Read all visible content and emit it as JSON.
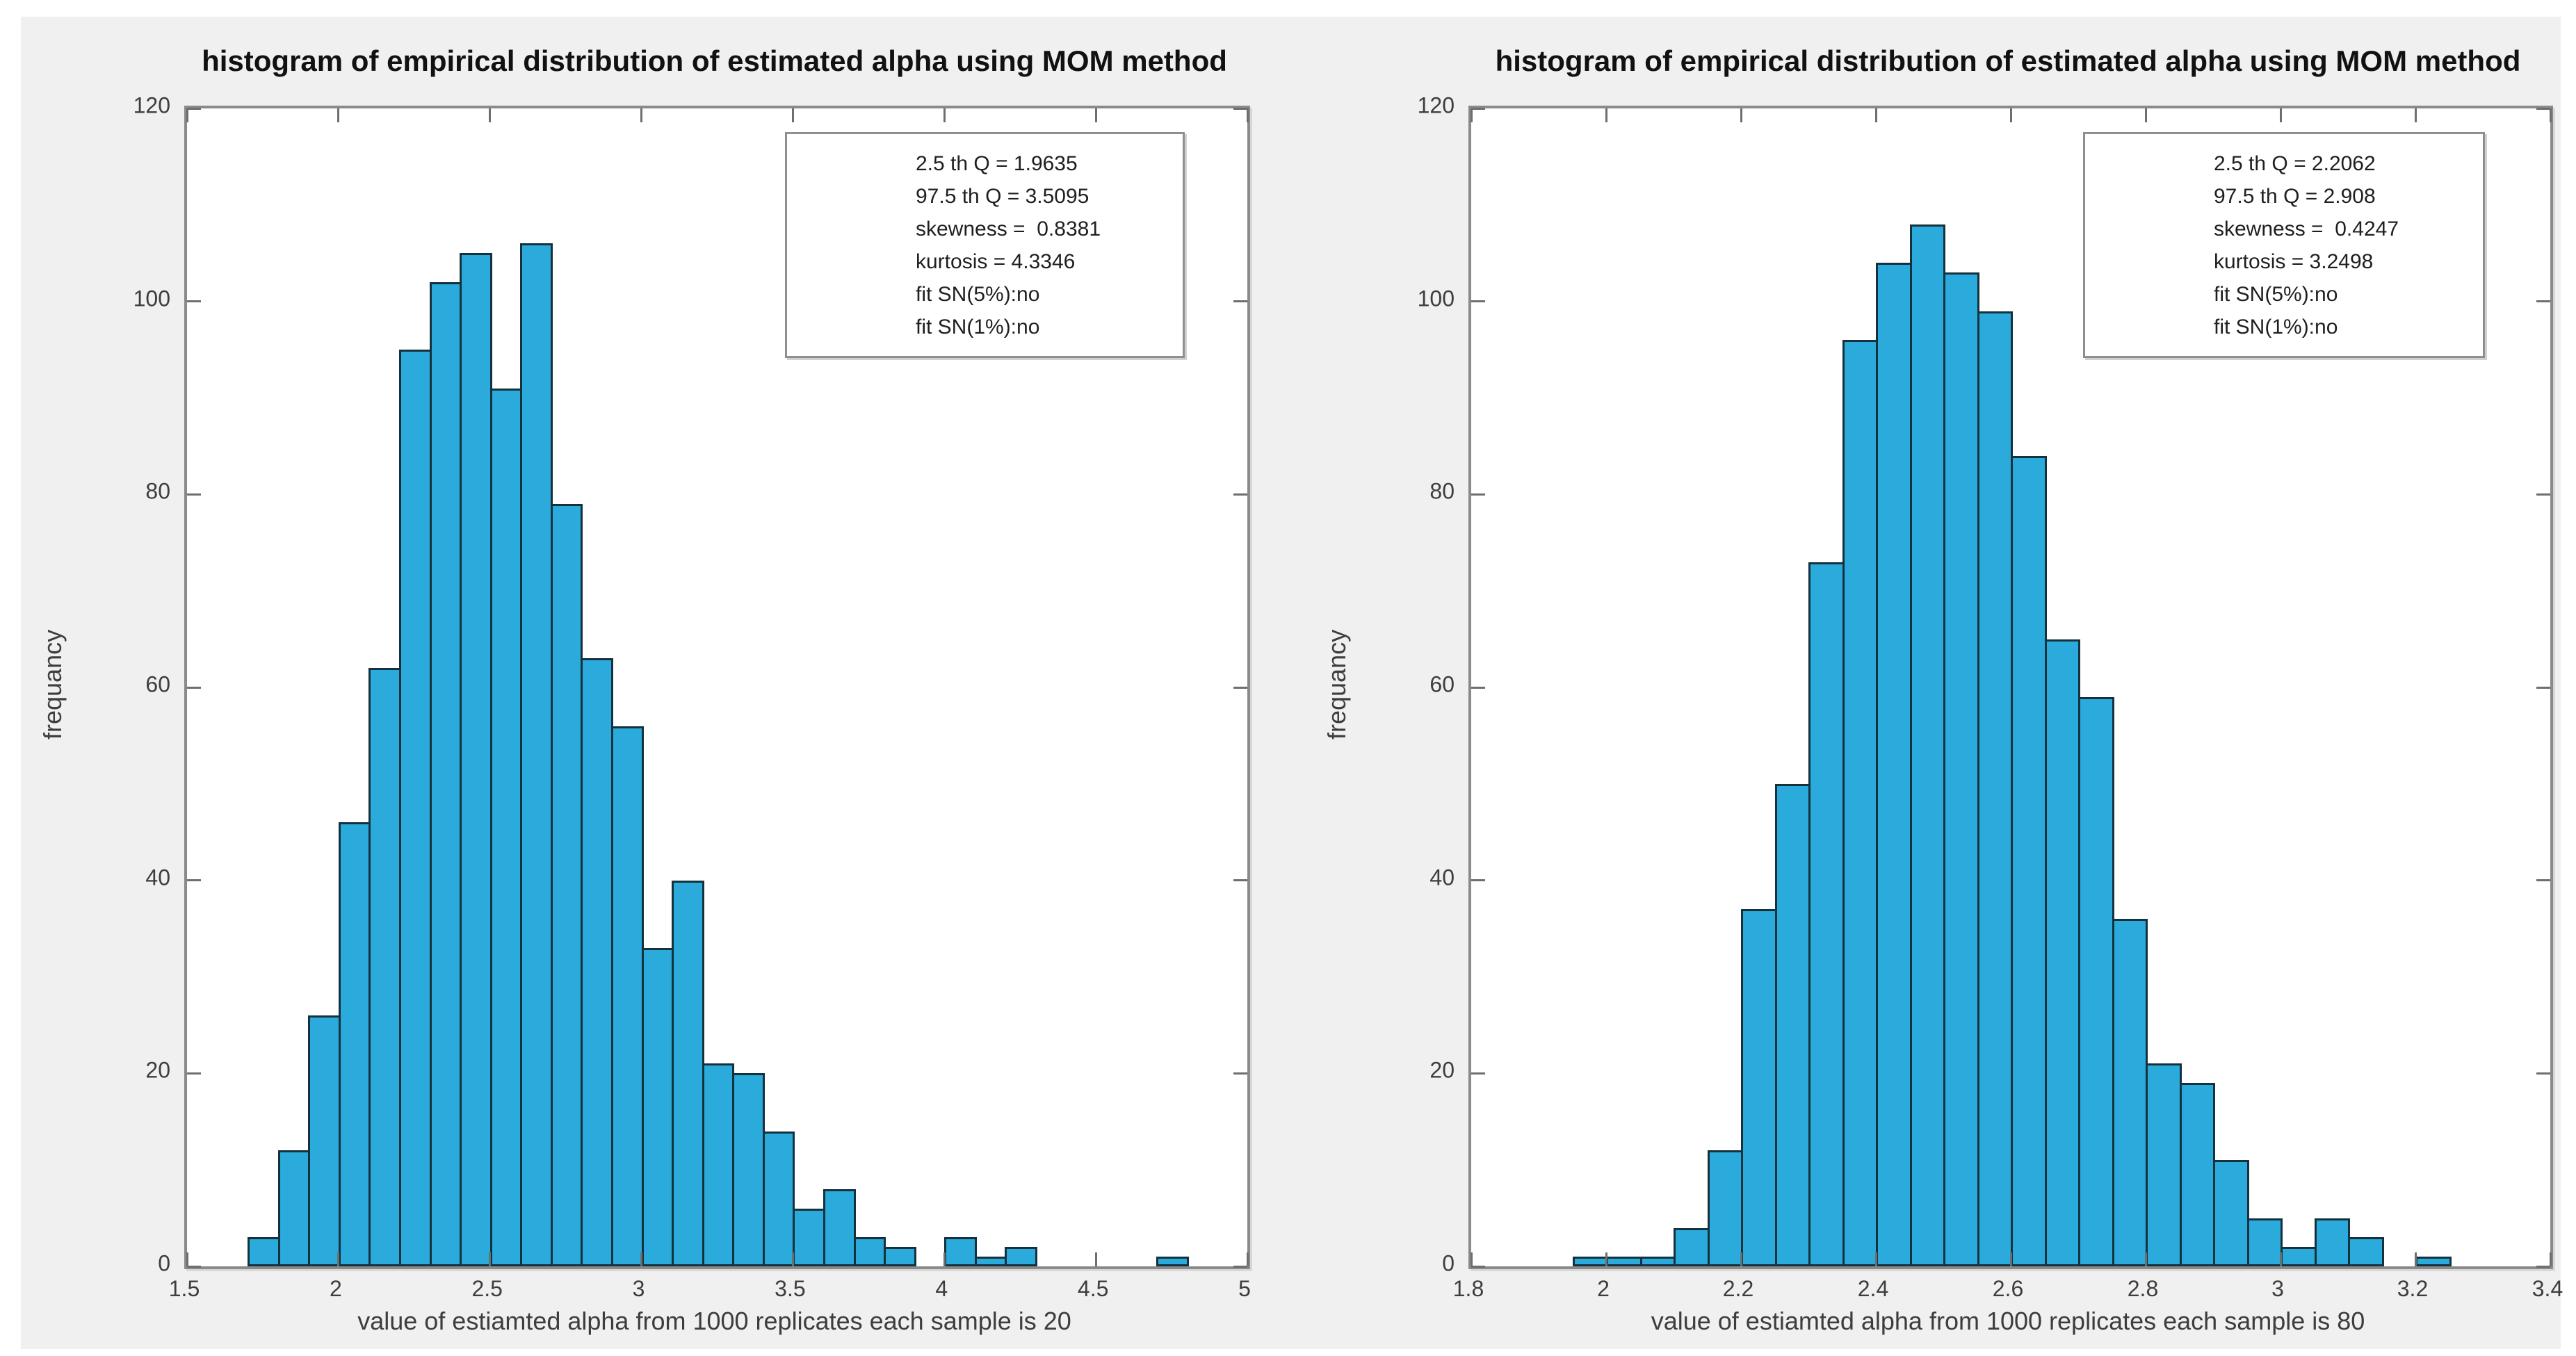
{
  "figure": {
    "page_background": "#ffffff",
    "figure_background": "#f0f0f0"
  },
  "colors": {
    "bar_fill": "#2aabdc",
    "bar_edge": "#15313d",
    "axis_box": "#8a8a8a",
    "tick_mark": "#6e6e6e",
    "tick_text": "#3d3d3d",
    "title_text": "#111111"
  },
  "chart_data": [
    {
      "type": "bar",
      "title": "histogram of empirical distribution of estimated alpha using MOM method",
      "xlabel": "value of estiamted alpha from 1000 replicates each sample is 20",
      "ylabel": "frequancy",
      "xlim": [
        1.5,
        5
      ],
      "ylim": [
        0,
        120
      ],
      "x_tick_labels": [
        "1.5",
        "2",
        "2.5",
        "3",
        "3.5",
        "4",
        "4.5",
        "5"
      ],
      "y_tick_labels": [
        "0",
        "20",
        "40",
        "60",
        "80",
        "100",
        "120"
      ],
      "bin_start": 1.7,
      "bin_width": 0.1,
      "counts": [
        3,
        12,
        26,
        46,
        62,
        95,
        102,
        105,
        91,
        106,
        79,
        63,
        56,
        33,
        40,
        21,
        20,
        14,
        6,
        8,
        3,
        2,
        0,
        3,
        1,
        2,
        0,
        0,
        0,
        0,
        1
      ],
      "legend_position": "top-right",
      "grid": false,
      "stats": [
        "2.5 th Q = 1.9635",
        "97.5 th Q = 3.5095",
        "skewness =  0.8381",
        "kurtosis = 4.3346",
        "fit SN(5%):no",
        "fit SN(1%):no"
      ]
    },
    {
      "type": "bar",
      "title": "histogram of empirical distribution of estimated alpha using MOM method",
      "xlabel": "value of estiamted alpha from 1000 replicates each sample is 80",
      "ylabel": "frequancy",
      "xlim": [
        1.8,
        3.4
      ],
      "ylim": [
        0,
        120
      ],
      "x_tick_labels": [
        "1.8",
        "2",
        "2.2",
        "2.4",
        "2.6",
        "2.8",
        "3",
        "3.2",
        "3.4"
      ],
      "y_tick_labels": [
        "0",
        "20",
        "40",
        "60",
        "80",
        "100",
        "120"
      ],
      "bin_start": 1.95,
      "bin_width": 0.05,
      "counts": [
        1,
        1,
        1,
        4,
        12,
        37,
        50,
        73,
        96,
        104,
        108,
        103,
        99,
        84,
        65,
        59,
        36,
        21,
        19,
        11,
        5,
        2,
        5,
        3,
        0,
        1
      ],
      "legend_position": "top-right",
      "grid": false,
      "stats": [
        "2.5 th Q = 2.2062",
        "97.5 th Q = 2.908",
        "skewness =  0.4247",
        "kurtosis = 3.2498",
        "fit SN(5%):no",
        "fit SN(1%):no"
      ]
    }
  ]
}
